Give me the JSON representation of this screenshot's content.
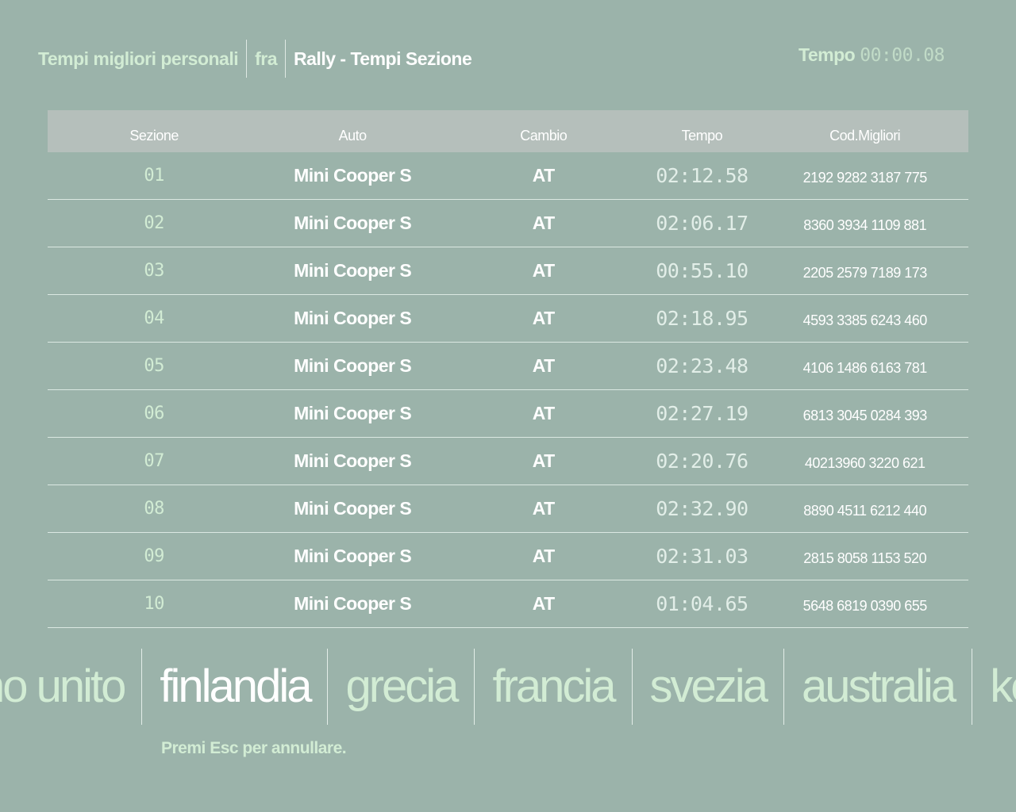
{
  "header": {
    "title": "Tempi migliori personali",
    "player": "fra",
    "mode": "Rally - Tempi Sezione",
    "timer_label": "Tempo",
    "timer_value": "00:00.08"
  },
  "table": {
    "columns": [
      "Sezione",
      "Auto",
      "Cambio",
      "Tempo",
      "Cod.Migliori"
    ],
    "rows": [
      [
        "01",
        "Mini Cooper S",
        "AT",
        "02:12.58",
        "2192 9282 3187 775"
      ],
      [
        "02",
        "Mini Cooper S",
        "AT",
        "02:06.17",
        "8360 3934 1109 881"
      ],
      [
        "03",
        "Mini Cooper S",
        "AT",
        "00:55.10",
        "2205 2579 7189 173"
      ],
      [
        "04",
        "Mini Cooper S",
        "AT",
        "02:18.95",
        "4593 3385 6243 460"
      ],
      [
        "05",
        "Mini Cooper S",
        "AT",
        "02:23.48",
        "4106 1486 6163 781"
      ],
      [
        "06",
        "Mini Cooper S",
        "AT",
        "02:27.19",
        "6813 3045 0284 393"
      ],
      [
        "07",
        "Mini Cooper S",
        "AT",
        "02:20.76",
        "40213960 3220 621"
      ],
      [
        "08",
        "Mini Cooper S",
        "AT",
        "02:32.90",
        "8890 4511 6212 440"
      ],
      [
        "09",
        "Mini Cooper S",
        "AT",
        "02:31.03",
        "2815 8058 1153 520"
      ],
      [
        "10",
        "Mini Cooper S",
        "AT",
        "01:04.65",
        "5648 6819 0390 655"
      ]
    ]
  },
  "rallies": {
    "items": [
      "no unito",
      "finlandia",
      "grecia",
      "francia",
      "svezia",
      "australia",
      "ke"
    ],
    "active_index": 1
  },
  "hint": "Premi Esc per annullare.",
  "colors": {
    "background": "#9bb3aa",
    "header_band": "#b5bfbb",
    "accent_text": "#d2ecd4"
  }
}
